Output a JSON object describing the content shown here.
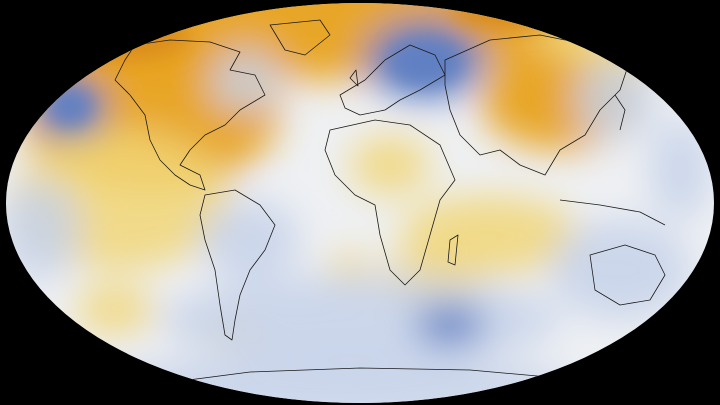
{
  "map": {
    "projection": "Robinson",
    "background_color": "#000000",
    "palette": {
      "cold_strong": "#5f7fc4",
      "cold_light": "#c6d2ea",
      "neutral": "#eef0f3",
      "warm_light": "#f1d677",
      "warm_strong": "#e8a21f",
      "warm_deep": "#d98b1a",
      "coastline": "#1a1a1a"
    },
    "anomaly_regions": [
      {
        "id": "arctic-north-warm",
        "kind": "warm_strong"
      },
      {
        "id": "canada-greenland-warm",
        "kind": "warm_strong"
      },
      {
        "id": "north-pacific-cold-spot",
        "kind": "cold_strong"
      },
      {
        "id": "hudson-bay-cold",
        "kind": "cold_light"
      },
      {
        "id": "eastern-north-america-cold",
        "kind": "cold_light"
      },
      {
        "id": "east-pacific-warm",
        "kind": "warm_strong"
      },
      {
        "id": "siberia-scandinavia-cold",
        "kind": "cold_strong"
      },
      {
        "id": "china-warm",
        "kind": "warm_strong"
      },
      {
        "id": "japan-cold",
        "kind": "cold_light"
      },
      {
        "id": "sahara-warm",
        "kind": "warm_light"
      },
      {
        "id": "indian-ocean-warm",
        "kind": "warm_light"
      },
      {
        "id": "south-pacific-warm-streak",
        "kind": "warm_light"
      },
      {
        "id": "southern-ocean-cold",
        "kind": "cold_light"
      },
      {
        "id": "australia-cold",
        "kind": "cold_light"
      }
    ]
  }
}
